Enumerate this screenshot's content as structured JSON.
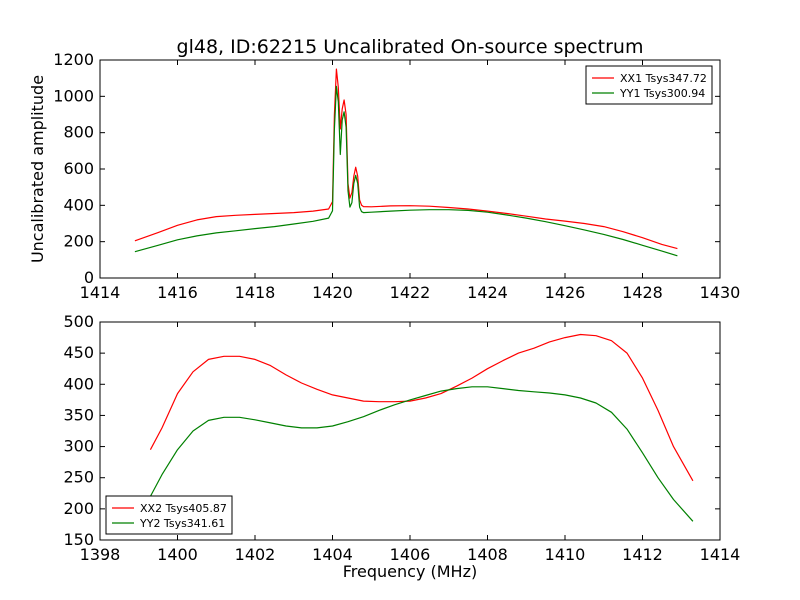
{
  "figure": {
    "title": "gl48, ID:62215 Uncalibrated On-source spectrum"
  },
  "chart_data": [
    {
      "type": "line",
      "ylabel": "Uncalibrated amplitude",
      "xlabel": "",
      "xlim": [
        1414,
        1430
      ],
      "ylim": [
        0,
        1200
      ],
      "xticks": [
        "1414",
        "1416",
        "1418",
        "1420",
        "1422",
        "1424",
        "1426",
        "1428",
        "1430"
      ],
      "yticks": [
        "0",
        "200",
        "400",
        "600",
        "800",
        "1000",
        "1200"
      ],
      "legend": {
        "placement": "top-right"
      },
      "grid": false,
      "series": [
        {
          "name": "XX1 Tsys347.72",
          "color": "#ff0000",
          "x": [
            1414.9,
            1415.5,
            1416.0,
            1416.5,
            1417.0,
            1417.5,
            1418.0,
            1418.5,
            1419.0,
            1419.5,
            1419.9,
            1420.0,
            1420.05,
            1420.1,
            1420.15,
            1420.2,
            1420.25,
            1420.3,
            1420.35,
            1420.4,
            1420.45,
            1420.5,
            1420.55,
            1420.6,
            1420.65,
            1420.7,
            1420.75,
            1420.8,
            1421.0,
            1421.5,
            1422.0,
            1422.5,
            1423.0,
            1423.5,
            1424.0,
            1424.5,
            1425.0,
            1425.5,
            1426.0,
            1426.5,
            1427.0,
            1427.5,
            1428.0,
            1428.5,
            1428.9
          ],
          "y": [
            205,
            250,
            290,
            320,
            338,
            345,
            350,
            355,
            360,
            368,
            380,
            420,
            900,
            1150,
            1050,
            820,
            930,
            980,
            900,
            520,
            440,
            470,
            560,
            610,
            560,
            430,
            400,
            393,
            392,
            397,
            398,
            395,
            388,
            380,
            368,
            355,
            340,
            325,
            313,
            300,
            283,
            255,
            222,
            185,
            162
          ]
        },
        {
          "name": "YY1 Tsys300.94",
          "color": "#008000",
          "x": [
            1414.9,
            1415.5,
            1416.0,
            1416.5,
            1417.0,
            1417.5,
            1418.0,
            1418.5,
            1419.0,
            1419.5,
            1419.9,
            1420.0,
            1420.05,
            1420.1,
            1420.15,
            1420.2,
            1420.25,
            1420.3,
            1420.35,
            1420.4,
            1420.45,
            1420.5,
            1420.55,
            1420.6,
            1420.65,
            1420.7,
            1420.75,
            1420.8,
            1421.0,
            1421.5,
            1422.0,
            1422.5,
            1423.0,
            1423.5,
            1424.0,
            1424.5,
            1425.0,
            1425.5,
            1426.0,
            1426.5,
            1427.0,
            1427.5,
            1428.0,
            1428.5,
            1428.9
          ],
          "y": [
            145,
            180,
            210,
            232,
            248,
            260,
            272,
            283,
            297,
            312,
            330,
            370,
            820,
            1055,
            970,
            680,
            870,
            915,
            830,
            480,
            390,
            415,
            520,
            565,
            520,
            390,
            365,
            360,
            362,
            368,
            373,
            376,
            376,
            372,
            362,
            347,
            330,
            310,
            288,
            265,
            240,
            212,
            180,
            148,
            122
          ]
        }
      ]
    },
    {
      "type": "line",
      "ylabel": "",
      "xlabel": "Frequency (MHz)",
      "xlim": [
        1398,
        1414
      ],
      "ylim": [
        150,
        500
      ],
      "xticks": [
        "1398",
        "1400",
        "1402",
        "1404",
        "1406",
        "1408",
        "1410",
        "1412",
        "1414"
      ],
      "yticks": [
        "150",
        "200",
        "250",
        "300",
        "350",
        "400",
        "450",
        "500"
      ],
      "legend": {
        "placement": "bottom-left"
      },
      "grid": false,
      "series": [
        {
          "name": "XX2 Tsys405.87",
          "color": "#ff0000",
          "x": [
            1399.3,
            1399.6,
            1400.0,
            1400.4,
            1400.8,
            1401.2,
            1401.6,
            1402.0,
            1402.4,
            1402.8,
            1403.2,
            1403.6,
            1404.0,
            1404.4,
            1404.8,
            1405.2,
            1405.6,
            1406.0,
            1406.4,
            1406.8,
            1407.2,
            1407.6,
            1408.0,
            1408.4,
            1408.8,
            1409.2,
            1409.6,
            1410.0,
            1410.4,
            1410.8,
            1411.2,
            1411.6,
            1412.0,
            1412.4,
            1412.8,
            1413.3
          ],
          "y": [
            295,
            330,
            385,
            420,
            440,
            445,
            445,
            440,
            430,
            415,
            402,
            392,
            383,
            378,
            373,
            372,
            372,
            373,
            378,
            385,
            397,
            410,
            425,
            438,
            450,
            458,
            468,
            475,
            480,
            478,
            470,
            450,
            410,
            358,
            300,
            245
          ]
        },
        {
          "name": "YY2 Tsys341.61",
          "color": "#008000",
          "x": [
            1399.3,
            1399.6,
            1400.0,
            1400.4,
            1400.8,
            1401.2,
            1401.6,
            1402.0,
            1402.4,
            1402.8,
            1403.2,
            1403.6,
            1404.0,
            1404.4,
            1404.8,
            1405.2,
            1405.6,
            1406.0,
            1406.4,
            1406.8,
            1407.2,
            1407.6,
            1408.0,
            1408.4,
            1408.8,
            1409.2,
            1409.6,
            1410.0,
            1410.4,
            1410.8,
            1411.2,
            1411.6,
            1412.0,
            1412.4,
            1412.8,
            1413.3
          ],
          "y": [
            220,
            255,
            295,
            325,
            342,
            347,
            347,
            343,
            338,
            333,
            330,
            330,
            333,
            340,
            348,
            358,
            367,
            375,
            382,
            389,
            393,
            396,
            396,
            393,
            390,
            388,
            386,
            383,
            378,
            370,
            355,
            328,
            290,
            250,
            215,
            180
          ]
        }
      ]
    }
  ]
}
